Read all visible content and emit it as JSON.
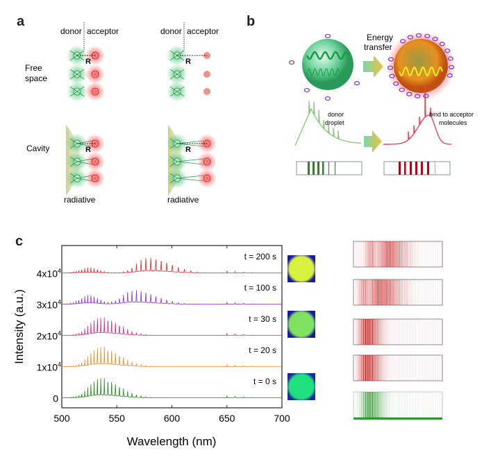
{
  "panel_a": {
    "label": "a",
    "donor": "donor",
    "acceptor": "acceptor",
    "distance": "R",
    "row_free": "Free space",
    "row_cavity": "Cavity",
    "radiative": "radiative",
    "colors": {
      "donor": "#3cb86a",
      "acceptor": "#f04040",
      "cavity": "#d8dca0"
    }
  },
  "panel_b": {
    "label": "b",
    "energy_transfer": [
      "Energy",
      "transfer"
    ],
    "donor_text": [
      "donor",
      "droplet"
    ],
    "acceptor_text": [
      "bind to acceptor",
      "molecules"
    ],
    "colors": {
      "donor": "#3a7a2a",
      "acceptor": "#c00010",
      "molecule": "#7a40d0"
    }
  },
  "panel_c": {
    "label": "c"
  },
  "chart_data": {
    "type": "line",
    "title": "",
    "xlabel": "Wavelength (nm)",
    "ylabel": "Intensity (a.u.)",
    "xlim": [
      500,
      700
    ],
    "ylim": [
      -3000,
      49000
    ],
    "xticks": [
      "500",
      "550",
      "600",
      "650",
      "700"
    ],
    "yticks": [
      {
        "value": 0,
        "label": "0"
      },
      {
        "value": 10000,
        "label": "1x10",
        "exp": "4"
      },
      {
        "value": 20000,
        "label": "2x10",
        "exp": "4"
      },
      {
        "value": 30000,
        "label": "3x10",
        "exp": "4"
      },
      {
        "value": 40000,
        "label": "4x10",
        "exp": "4"
      }
    ],
    "grid": false,
    "note_stacked": "vertically offset spectra, lasing mode comb",
    "series": [
      {
        "name": "t = 0 s",
        "color": "#1a8a1a",
        "offset": 0,
        "envelope_peak_nm": 535,
        "max_intensity": 6500
      },
      {
        "name": "t = 20 s",
        "color": "#f08a20",
        "offset": 10000,
        "envelope_peak_nm": 535,
        "max_intensity": 6500
      },
      {
        "name": "t = 30 s",
        "color": "#e0207a",
        "offset": 20000,
        "envelope_peak_nm": 535,
        "max_intensity": 6000
      },
      {
        "name": "t = 100 s",
        "color": "#8a2be2",
        "offset": 30000,
        "envelope_peak_nm": 565,
        "max_intensity": 4500
      },
      {
        "name": "t = 200 s",
        "color": "#e82020",
        "offset": 40000,
        "envelope_peak_nm": 578,
        "max_intensity": 5000
      }
    ]
  },
  "images": [
    {
      "name": "droplet-image-t200",
      "colors": [
        "#d8f040",
        "#1a1aa0"
      ]
    },
    {
      "name": "droplet-image-t30",
      "colors": [
        "#80e060",
        "#1a1aa0"
      ]
    },
    {
      "name": "droplet-image-t0",
      "colors": [
        "#20e080",
        "#1a2aa0"
      ]
    }
  ],
  "barcodes": [
    {
      "name": "t = 200 s",
      "color": "#d01818"
    },
    {
      "name": "t = 100 s",
      "color": "#d01818"
    },
    {
      "name": "t = 30 s",
      "color": "#c00000"
    },
    {
      "name": "t = 20 s",
      "color": "#c00000"
    },
    {
      "name": "t = 0 s",
      "color": "#1a8a1a"
    }
  ]
}
